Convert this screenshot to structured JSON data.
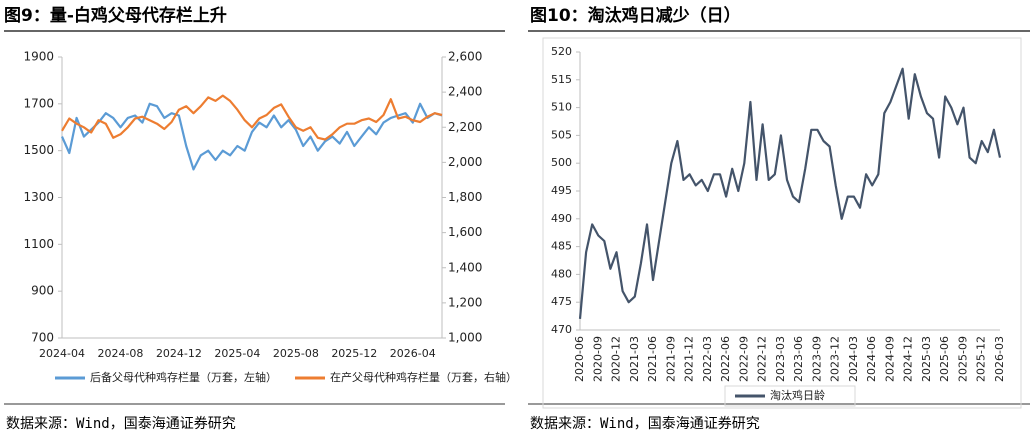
{
  "chart_data": [
    {
      "type": "line",
      "title": "图9：量-白鸡父母代存栏上升",
      "source": "数据来源：Wind，国泰海通证券研究",
      "categories": [
        "2024-04",
        null,
        null,
        null,
        null,
        null,
        null,
        null,
        "2024-08",
        null,
        null,
        null,
        null,
        null,
        null,
        null,
        "2024-12",
        null,
        null,
        null,
        null,
        null,
        null,
        null,
        "2025-04",
        null,
        null,
        null,
        null,
        null,
        null,
        null,
        "2025-08",
        null,
        null,
        null,
        null,
        null,
        null,
        null,
        "2025-12",
        null,
        null,
        null,
        null,
        null,
        null,
        null,
        "2026-04",
        null,
        null,
        null,
        null
      ],
      "ylim": [
        700,
        1900
      ],
      "yticks": [
        700,
        900,
        1100,
        1300,
        1500,
        1700,
        1900
      ],
      "y2lim": [
        1000,
        2600
      ],
      "y2ticks": [
        {
          "value": 1000,
          "label": "1,000"
        },
        {
          "value": 1200,
          "label": "1,200"
        },
        {
          "value": 1400,
          "label": "1,400"
        },
        {
          "value": 1600,
          "label": "1,600"
        },
        {
          "value": 1800,
          "label": "1,800"
        },
        {
          "value": 2000,
          "label": "2,000"
        },
        {
          "value": 2200,
          "label": "2,200"
        },
        {
          "value": 2400,
          "label": "2,400"
        },
        {
          "value": 2600,
          "label": "2,600"
        }
      ],
      "grid": false,
      "series": [
        {
          "name": "后备父母代种鸡存栏量（万套，左轴）",
          "color": "#5b9bd5",
          "axis": "y",
          "values": [
            1560,
            1490,
            1640,
            1560,
            1590,
            1620,
            1660,
            1640,
            1600,
            1640,
            1650,
            1620,
            1700,
            1690,
            1640,
            1660,
            1650,
            1520,
            1420,
            1480,
            1500,
            1460,
            1500,
            1480,
            1520,
            1500,
            1580,
            1620,
            1600,
            1650,
            1600,
            1630,
            1590,
            1520,
            1560,
            1500,
            1540,
            1560,
            1530,
            1580,
            1520,
            1560,
            1600,
            1570,
            1620,
            1640,
            1650,
            1660,
            1620,
            1700,
            1640,
            1660,
            1650
          ]
        },
        {
          "name": "在产父母代种鸡存栏量（万套，右轴）",
          "color": "#ed7d31",
          "axis": "y2",
          "values": [
            2180,
            2250,
            2220,
            2200,
            2170,
            2240,
            2220,
            2140,
            2160,
            2200,
            2250,
            2260,
            2240,
            2220,
            2190,
            2230,
            2300,
            2320,
            2280,
            2320,
            2370,
            2350,
            2380,
            2350,
            2300,
            2240,
            2200,
            2250,
            2270,
            2310,
            2330,
            2260,
            2200,
            2180,
            2200,
            2140,
            2130,
            2160,
            2200,
            2220,
            2220,
            2240,
            2250,
            2230,
            2270,
            2360,
            2250,
            2260,
            2240,
            2230,
            2260,
            2280,
            2270
          ]
        }
      ]
    },
    {
      "type": "line",
      "title": "图10：淘汰鸡日减少（日）",
      "source": "数据来源：Wind，国泰海通证券研究",
      "categories": [
        "2020-06",
        null,
        null,
        "2020-09",
        null,
        null,
        "2020-12",
        null,
        null,
        "2021-03",
        null,
        null,
        "2021-06",
        null,
        null,
        "2021-09",
        null,
        null,
        "2021-12",
        null,
        null,
        "2022-03",
        null,
        null,
        "2022-06",
        null,
        null,
        "2022-09",
        null,
        null,
        "2022-12",
        null,
        null,
        "2023-03",
        null,
        null,
        "2023-06",
        null,
        null,
        "2023-09",
        null,
        null,
        "2023-12",
        null,
        null,
        "2024-03",
        null,
        null,
        "2024-06",
        null,
        null,
        "2024-09",
        null,
        null,
        "2024-12",
        null,
        null,
        "2025-03",
        null,
        null,
        "2025-06",
        null,
        null,
        "2025-09",
        null,
        null,
        "2025-12",
        null,
        null,
        "2026-03"
      ],
      "ylim": [
        470,
        520
      ],
      "yticks": [
        470,
        475,
        480,
        485,
        490,
        495,
        500,
        505,
        510,
        515,
        520
      ],
      "grid": false,
      "series": [
        {
          "name": "淘汰鸡日龄",
          "color": "#44546a",
          "axis": "y",
          "values": [
            472,
            484,
            489,
            487,
            486,
            481,
            484,
            477,
            475,
            476,
            482,
            489,
            479,
            486,
            493,
            500,
            504,
            497,
            498,
            496,
            497,
            495,
            498,
            498,
            494,
            499,
            495,
            500,
            511,
            497,
            507,
            497,
            498,
            505,
            497,
            494,
            493,
            499,
            506,
            506,
            504,
            503,
            496,
            490,
            494,
            494,
            492,
            498,
            496,
            498,
            509,
            511,
            514,
            517,
            508,
            516,
            512,
            509,
            508,
            501,
            512,
            510,
            507,
            510,
            501,
            500,
            504,
            502,
            506,
            501
          ]
        }
      ]
    }
  ]
}
